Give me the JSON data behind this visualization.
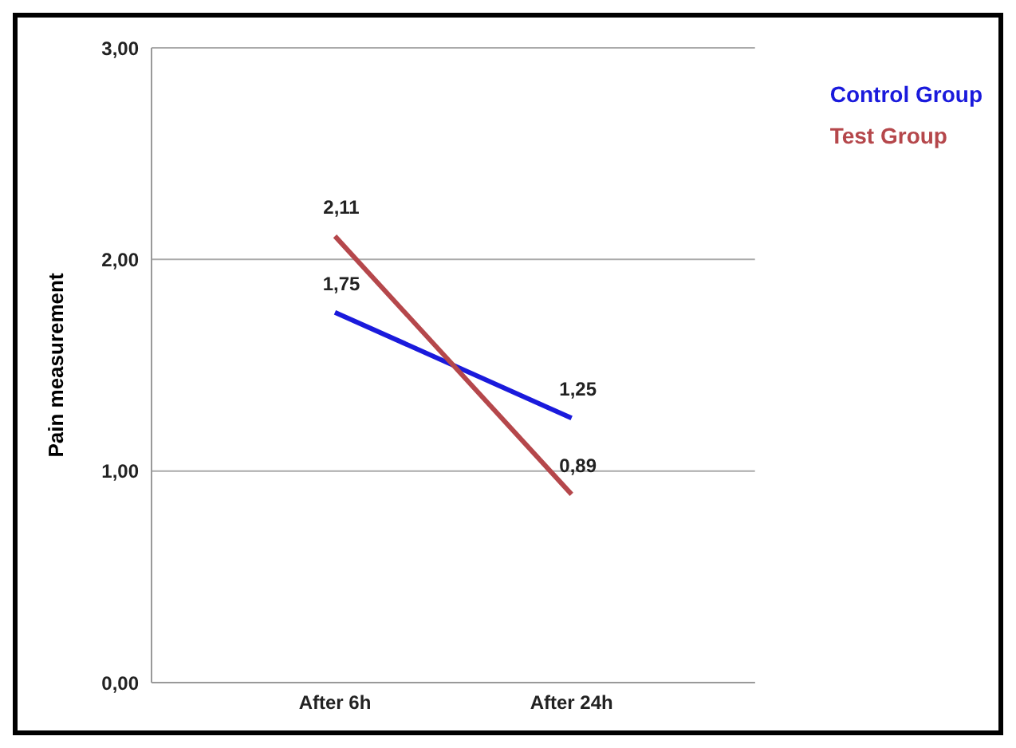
{
  "chart_data": {
    "type": "line",
    "ylabel": "Pain measurement",
    "categories": [
      "After 6h",
      "After 24h"
    ],
    "series": [
      {
        "name": "Control Group",
        "color": "#1a1adc",
        "values": [
          1.75,
          1.25
        ],
        "value_labels": [
          "1,75",
          "1,25"
        ]
      },
      {
        "name": "Test Group",
        "color": "#b5474b",
        "values": [
          2.11,
          0.89
        ],
        "value_labels": [
          "2,11",
          "0,89"
        ]
      }
    ],
    "ylim": [
      0,
      3
    ],
    "yticks": [
      {
        "value": 0,
        "label": "0,00"
      },
      {
        "value": 1,
        "label": "1,00"
      },
      {
        "value": 2,
        "label": "2,00"
      },
      {
        "value": 3,
        "label": "3,00"
      }
    ],
    "grid": "y",
    "legend": "top right",
    "marker": "none",
    "line_style": "solid"
  }
}
